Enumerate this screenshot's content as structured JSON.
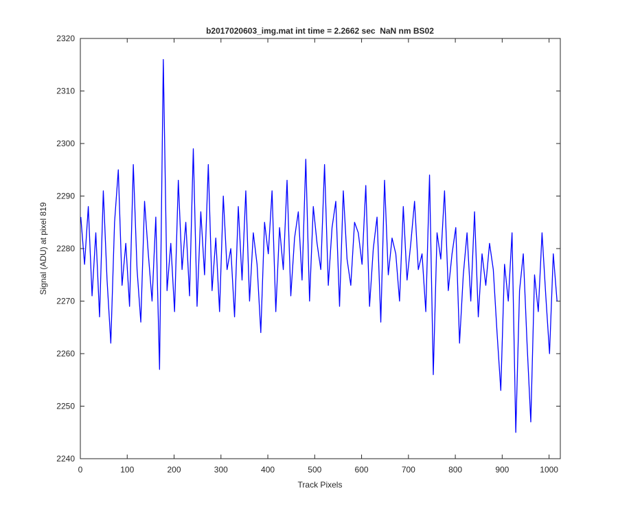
{
  "chart_data": {
    "type": "line",
    "title": "b2017020603_img.mat int time = 2.2662 sec  NaN nm BS02",
    "xlabel": "Track Pixels",
    "ylabel": "Signal (ADU) at pixel 819",
    "color": "#0000ff",
    "x": [
      1,
      9,
      17,
      25,
      33,
      41,
      49,
      57,
      65,
      73,
      81,
      89,
      97,
      105,
      113,
      121,
      129,
      137,
      145,
      153,
      161,
      169,
      177,
      185,
      193,
      201,
      209,
      217,
      225,
      233,
      241,
      249,
      257,
      265,
      273,
      281,
      289,
      297,
      305,
      313,
      321,
      329,
      337,
      345,
      353,
      361,
      369,
      377,
      385,
      393,
      401,
      409,
      417,
      425,
      433,
      441,
      449,
      457,
      465,
      473,
      481,
      489,
      497,
      505,
      513,
      521,
      529,
      537,
      545,
      553,
      561,
      569,
      577,
      585,
      593,
      601,
      609,
      617,
      625,
      633,
      641,
      649,
      657,
      665,
      673,
      681,
      689,
      697,
      705,
      713,
      721,
      729,
      737,
      745,
      753,
      761,
      769,
      777,
      785,
      793,
      801,
      809,
      817,
      825,
      833,
      841,
      849,
      857,
      865,
      873,
      881,
      889,
      897,
      905,
      913,
      921,
      929,
      937,
      945,
      953,
      961,
      969,
      977,
      985,
      993,
      1001,
      1009,
      1017
    ],
    "values": [
      2286,
      2277,
      2288,
      2271,
      2283,
      2267,
      2291,
      2274,
      2262,
      2285,
      2295,
      2273,
      2281,
      2269,
      2296,
      2276,
      2266,
      2289,
      2279,
      2270,
      2286,
      2257,
      2316,
      2272,
      2281,
      2268,
      2293,
      2276,
      2285,
      2271,
      2299,
      2269,
      2287,
      2275,
      2296,
      2272,
      2282,
      2268,
      2290,
      2276,
      2280,
      2267,
      2288,
      2274,
      2291,
      2270,
      2283,
      2277,
      2264,
      2285,
      2279,
      2291,
      2268,
      2284,
      2276,
      2293,
      2271,
      2282,
      2287,
      2274,
      2297,
      2270,
      2288,
      2281,
      2276,
      2296,
      2273,
      2284,
      2289,
      2269,
      2291,
      2278,
      2273,
      2285,
      2283,
      2277,
      2292,
      2269,
      2280,
      2286,
      2266,
      2293,
      2275,
      2282,
      2279,
      2270,
      2288,
      2274,
      2281,
      2289,
      2276,
      2279,
      2268,
      2294,
      2256,
      2283,
      2278,
      2291,
      2272,
      2279,
      2284,
      2262,
      2275,
      2283,
      2270,
      2287,
      2267,
      2279,
      2273,
      2281,
      2276,
      2264,
      2253,
      2277,
      2270,
      2283,
      2245,
      2272,
      2279,
      2262,
      2247,
      2275,
      2268,
      2283,
      2271,
      2260,
      2279,
      2270
    ],
    "xlim": [
      0,
      1024
    ],
    "ylim": [
      2240,
      2320
    ],
    "xticks": [
      0,
      100,
      200,
      300,
      400,
      500,
      600,
      700,
      800,
      900,
      1000
    ],
    "yticks": [
      2240,
      2250,
      2260,
      2270,
      2280,
      2290,
      2300,
      2310,
      2320
    ],
    "grid": false
  }
}
